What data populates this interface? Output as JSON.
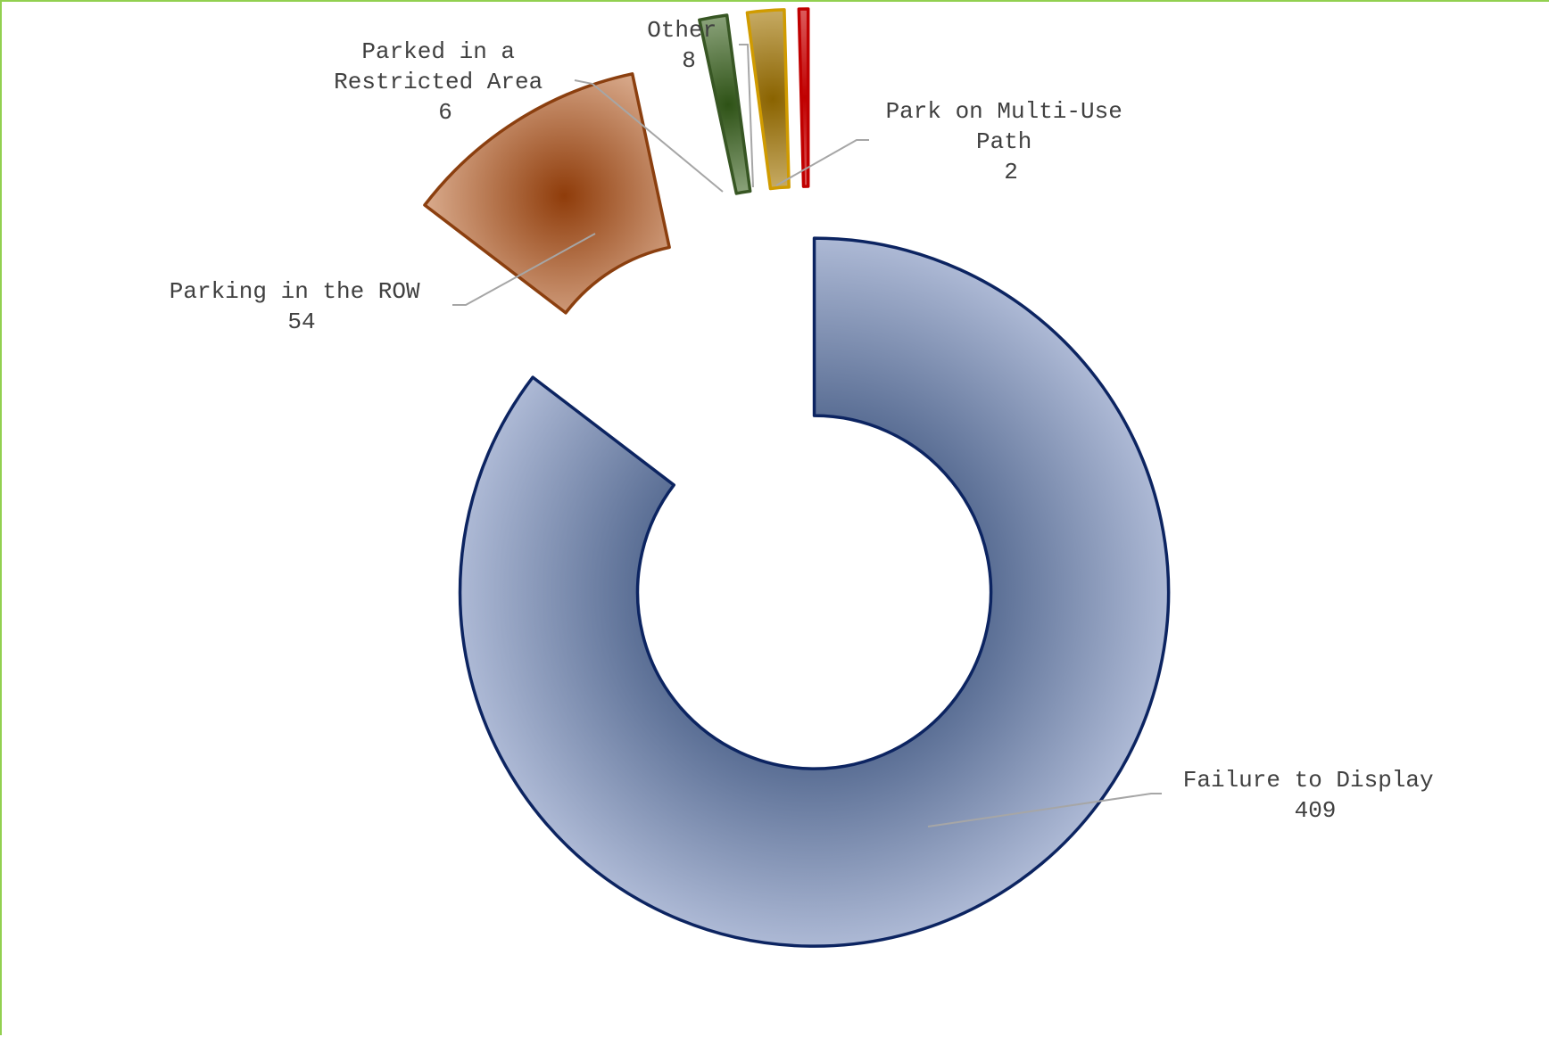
{
  "chart_data": {
    "type": "pie",
    "variant": "exploded-doughnut",
    "title": "",
    "series": [
      {
        "values": [
          {
            "label": "Failure to Display",
            "value": 409,
            "color": "#0c2461",
            "fill_light": "#adb9d5",
            "fill_dark": "#5b6f95"
          },
          {
            "label": "Parking in the ROW",
            "value": 54,
            "color": "#8b3f0f",
            "fill_light": "#e4bba0",
            "fill_dark": "#8f3c0a"
          },
          {
            "label": "Parked in a Restricted Area",
            "value": 6,
            "color": "#375623",
            "fill_light": "#d4e2c9",
            "fill_dark": "#2e5216"
          },
          {
            "label": "Other",
            "value": 8,
            "color": "#d09b00",
            "fill_light": "#f6e3b2",
            "fill_dark": "#8a6300"
          },
          {
            "label": "Park on Multi-Use Path",
            "value": 2,
            "color": "#c00000",
            "fill_light": "#f2a6a6",
            "fill_dark": "#c00000"
          }
        ]
      }
    ],
    "legend": "none",
    "data_labels": "category name and value, with leader lines"
  },
  "labels": {
    "failure": [
      "Failure to Display",
      "409"
    ],
    "row": [
      "Parking in the ROW",
      "54"
    ],
    "restricted": [
      "Parked in a",
      "Restricted Area",
      "6"
    ],
    "other": [
      "Other",
      "8"
    ],
    "multiuse": [
      "Park on Multi-Use",
      "Path",
      "2"
    ]
  }
}
